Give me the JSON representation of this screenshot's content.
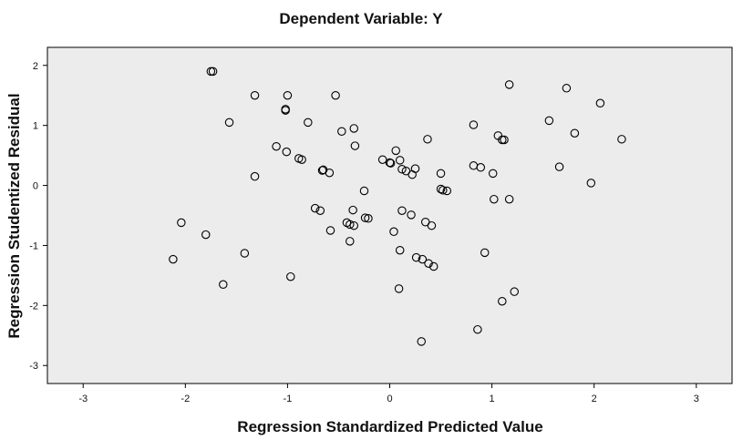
{
  "chart_data": {
    "type": "scatter",
    "title": "Dependent Variable: Y",
    "xlabel": "Regression Standardized Predicted Value",
    "ylabel": "Regression Studentized Residual",
    "xlim": [
      -3.35,
      3.35
    ],
    "ylim": [
      -3.3,
      2.3
    ],
    "xticks": [
      -3,
      -2,
      -1,
      0,
      1,
      2,
      3
    ],
    "yticks": [
      -3,
      -2,
      -1,
      0,
      1,
      2
    ],
    "grid": false,
    "legend": "none",
    "colors": {
      "plot_bg": "#ececec",
      "marker_stroke": "#000000",
      "frame": "#000000"
    },
    "marker": "open-circle",
    "points": [
      [
        -1.75,
        1.9
      ],
      [
        -1.73,
        1.9
      ],
      [
        -1.32,
        1.5
      ],
      [
        -1.0,
        1.5
      ],
      [
        -0.53,
        1.5
      ],
      [
        -1.02,
        1.27
      ],
      [
        -1.02,
        1.25
      ],
      [
        -1.57,
        1.05
      ],
      [
        -0.8,
        1.05
      ],
      [
        -0.35,
        0.95
      ],
      [
        -0.47,
        0.9
      ],
      [
        -1.11,
        0.65
      ],
      [
        -1.01,
        0.56
      ],
      [
        -0.34,
        0.66
      ],
      [
        -0.89,
        0.45
      ],
      [
        -0.86,
        0.43
      ],
      [
        -0.66,
        0.25
      ],
      [
        -0.59,
        0.21
      ],
      [
        -0.65,
        0.26
      ],
      [
        -1.32,
        0.15
      ],
      [
        -0.25,
        -0.09
      ],
      [
        -0.73,
        -0.38
      ],
      [
        -0.68,
        -0.42
      ],
      [
        -0.36,
        -0.41
      ],
      [
        -0.42,
        -0.62
      ],
      [
        -0.39,
        -0.65
      ],
      [
        -0.35,
        -0.67
      ],
      [
        -0.24,
        -0.54
      ],
      [
        -0.21,
        -0.55
      ],
      [
        -0.58,
        -0.75
      ],
      [
        -0.39,
        -0.93
      ],
      [
        -2.04,
        -0.62
      ],
      [
        -1.8,
        -0.82
      ],
      [
        -2.12,
        -1.23
      ],
      [
        -1.42,
        -1.13
      ],
      [
        -0.97,
        -1.52
      ],
      [
        -1.63,
        -1.65
      ],
      [
        0.06,
        0.58
      ],
      [
        0.1,
        0.42
      ],
      [
        0.12,
        0.27
      ],
      [
        0.16,
        0.24
      ],
      [
        -0.07,
        0.43
      ],
      [
        0.0,
        0.38
      ],
      [
        0.01,
        0.37
      ],
      [
        0.22,
        0.18
      ],
      [
        0.25,
        0.28
      ],
      [
        0.37,
        0.77
      ],
      [
        0.5,
        0.2
      ],
      [
        0.5,
        -0.06
      ],
      [
        0.52,
        -0.08
      ],
      [
        0.56,
        -0.09
      ],
      [
        0.12,
        -0.42
      ],
      [
        0.21,
        -0.49
      ],
      [
        0.35,
        -0.61
      ],
      [
        0.41,
        -0.67
      ],
      [
        0.04,
        -0.77
      ],
      [
        0.1,
        -1.08
      ],
      [
        0.26,
        -1.2
      ],
      [
        0.32,
        -1.23
      ],
      [
        0.38,
        -1.3
      ],
      [
        0.43,
        -1.35
      ],
      [
        0.09,
        -1.72
      ],
      [
        0.31,
        -2.6
      ],
      [
        0.82,
        1.01
      ],
      [
        0.82,
        0.33
      ],
      [
        0.89,
        0.3
      ],
      [
        1.01,
        0.2
      ],
      [
        1.06,
        0.83
      ],
      [
        1.1,
        0.76
      ],
      [
        1.12,
        0.76
      ],
      [
        1.17,
        1.68
      ],
      [
        1.02,
        -0.23
      ],
      [
        1.17,
        -0.23
      ],
      [
        0.93,
        -1.12
      ],
      [
        1.1,
        -1.93
      ],
      [
        1.22,
        -1.77
      ],
      [
        0.86,
        -2.4
      ],
      [
        1.56,
        1.08
      ],
      [
        1.73,
        1.62
      ],
      [
        1.81,
        0.87
      ],
      [
        1.66,
        0.31
      ],
      [
        1.97,
        0.04
      ],
      [
        2.06,
        1.37
      ],
      [
        2.27,
        0.77
      ]
    ]
  }
}
